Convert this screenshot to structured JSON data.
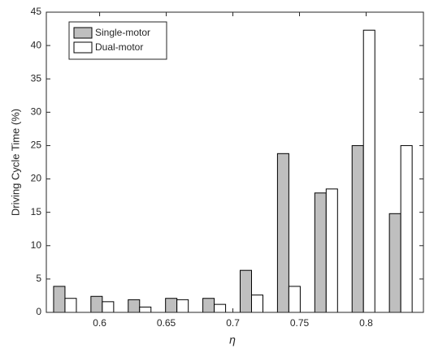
{
  "chart_data": {
    "type": "bar",
    "xlabel": "η",
    "ylabel": "Driving Cycle Time (%)",
    "x": [
      0.574,
      0.602,
      0.63,
      0.658,
      0.686,
      0.714,
      0.742,
      0.77,
      0.798,
      0.826
    ],
    "series": [
      {
        "name": "Single-motor",
        "color": "#bfbfbf",
        "values": [
          3.9,
          2.4,
          1.9,
          2.1,
          2.1,
          6.3,
          23.8,
          17.9,
          25.0,
          14.8
        ]
      },
      {
        "name": "Dual-motor",
        "color": "#ffffff",
        "values": [
          2.1,
          1.6,
          0.8,
          1.9,
          1.2,
          2.6,
          3.9,
          18.5,
          42.3,
          25.0
        ]
      }
    ],
    "xlim": [
      0.56,
      0.843
    ],
    "xticks": [
      0.6,
      0.65,
      0.7,
      0.75,
      0.8
    ],
    "ylim": [
      0,
      45
    ],
    "yticks": [
      0,
      5,
      10,
      15,
      20,
      25,
      30,
      35,
      40,
      45
    ],
    "grid": false,
    "legend": "upper left"
  }
}
